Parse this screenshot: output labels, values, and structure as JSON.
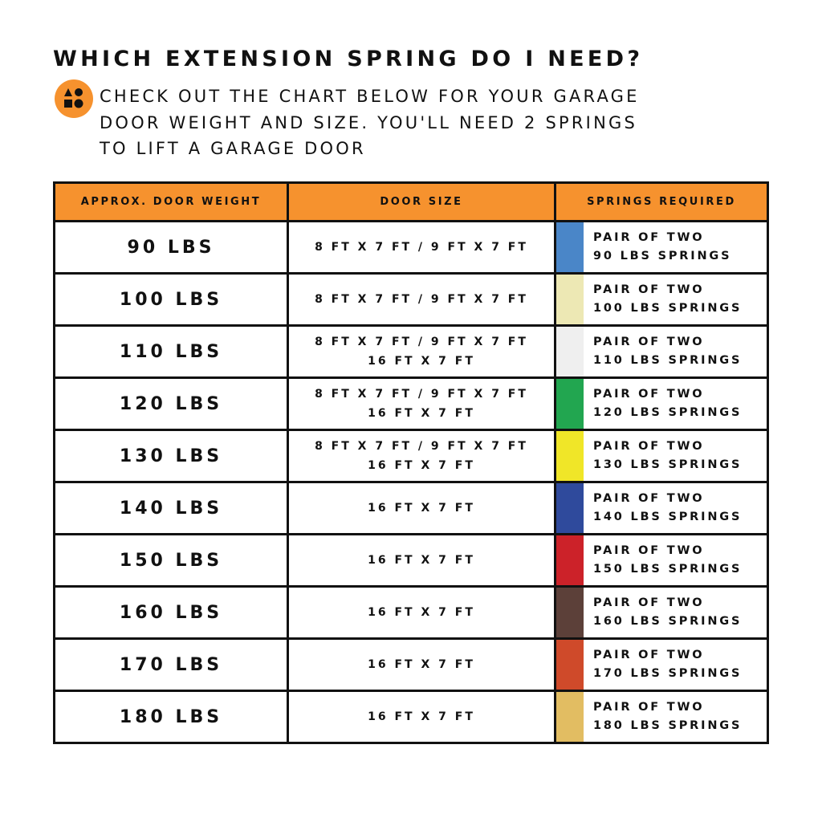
{
  "title": "WHICH EXTENSION SPRING DO I NEED?",
  "intro_lines": [
    "CHECK OUT THE CHART BELOW FOR YOUR GARAGE",
    "DOOR WEIGHT AND SIZE. YOU'LL NEED 2 SPRINGS",
    "TO LIFT A GARAGE DOOR"
  ],
  "colors": {
    "accent": "#f6922e"
  },
  "table": {
    "headers": [
      "APPROX. DOOR WEIGHT",
      "DOOR SIZE",
      "SPRINGS REQUIRED"
    ],
    "rows": [
      {
        "weight": "90 LBS",
        "size": [
          "8 FT X 7 FT / 9 FT X 7 FT"
        ],
        "springs": [
          "PAIR OF TWO",
          "90 LBS SPRINGS"
        ],
        "color": "#4a86c8"
      },
      {
        "weight": "100 LBS",
        "size": [
          "8 FT X 7 FT / 9 FT X 7 FT"
        ],
        "springs": [
          "PAIR OF TWO",
          "100 LBS SPRINGS"
        ],
        "color": "#ede8b4"
      },
      {
        "weight": "110 LBS",
        "size": [
          "8 FT X 7 FT / 9 FT X 7 FT",
          "16 FT X 7 FT"
        ],
        "springs": [
          "PAIR OF TWO",
          "110 LBS SPRINGS"
        ],
        "color": "#efefef"
      },
      {
        "weight": "120 LBS",
        "size": [
          "8 FT X 7 FT / 9 FT X 7 FT",
          "16 FT X 7 FT"
        ],
        "springs": [
          "PAIR OF TWO",
          "120 LBS SPRINGS"
        ],
        "color": "#22a650"
      },
      {
        "weight": "130 LBS",
        "size": [
          "8 FT X 7 FT / 9 FT X 7 FT",
          "16 FT X 7 FT"
        ],
        "springs": [
          "PAIR OF TWO",
          "130 LBS SPRINGS"
        ],
        "color": "#f0e628"
      },
      {
        "weight": "140 LBS",
        "size": [
          "16 FT X 7 FT"
        ],
        "springs": [
          "PAIR OF TWO",
          "140 LBS SPRINGS"
        ],
        "color": "#2f4a9c"
      },
      {
        "weight": "150 LBS",
        "size": [
          "16 FT X 7 FT"
        ],
        "springs": [
          "PAIR OF TWO",
          "150 LBS SPRINGS"
        ],
        "color": "#cc2229"
      },
      {
        "weight": "160 LBS",
        "size": [
          "16 FT X 7 FT"
        ],
        "springs": [
          "PAIR OF TWO",
          "160 LBS SPRINGS"
        ],
        "color": "#5c4039"
      },
      {
        "weight": "170 LBS",
        "size": [
          "16 FT X 7 FT"
        ],
        "springs": [
          "PAIR OF TWO",
          "170 LBS SPRINGS"
        ],
        "color": "#cf4a2a"
      },
      {
        "weight": "180 LBS",
        "size": [
          "16 FT X 7 FT"
        ],
        "springs": [
          "PAIR OF TWO",
          "180 LBS SPRINGS"
        ],
        "color": "#e2bd62"
      }
    ]
  }
}
